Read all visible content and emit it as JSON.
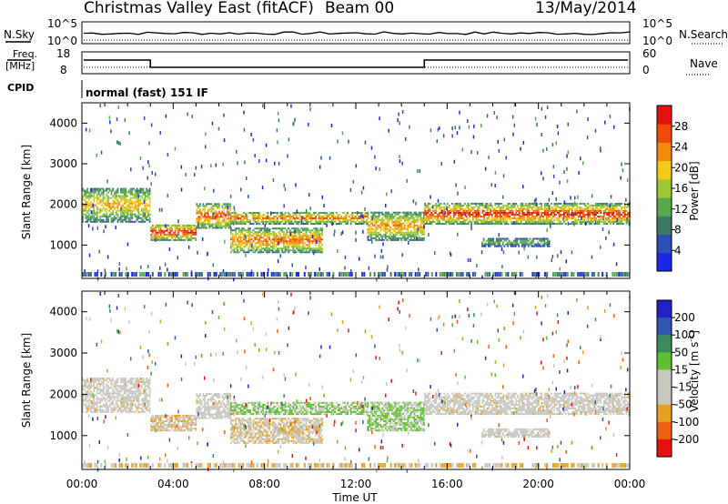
{
  "header": {
    "title": "Christmas Valley East (fitACF)",
    "beam": "Beam 00",
    "date": "13/May/2014"
  },
  "status": {
    "nsky_label": "N.Sky",
    "nsky_tick_hi": "10^5",
    "nsky_tick_lo": "10^0",
    "nsearch_label": "N.Search",
    "freq_label_1": "Freq.",
    "freq_label_2": "[MHz]",
    "freq_tick_hi": "18",
    "freq_tick_lo": "8",
    "nave_label": "Nave",
    "nave_tick_hi": "60",
    "nave_tick_lo": "0",
    "cpid_label": "CPID",
    "cpid_value": "normal (fast) 151 IF"
  },
  "colors": {
    "power": [
      "#1a28e6",
      "#2e4fb8",
      "#3d7a6a",
      "#58a84e",
      "#9cc834",
      "#f2c81a",
      "#f28a0c",
      "#f04a08",
      "#e61010"
    ],
    "velocity": [
      "#2222c8",
      "#2f58b0",
      "#3c8a5a",
      "#60c030",
      "#c8c8c0",
      "#c8c8c0",
      "#e8a020",
      "#f06010",
      "#e81010"
    ]
  },
  "chart_data": [
    {
      "type": "heatmap",
      "name": "power",
      "ylabel": "Slant Range [km]",
      "xlabel": "Time UT",
      "ylim": [
        180,
        4500
      ],
      "xlim_hours": [
        0,
        24
      ],
      "yticks": [
        1000,
        2000,
        3000,
        4000
      ],
      "xticks": [
        "00:00",
        "04:00",
        "08:00",
        "12:00",
        "16:00",
        "20:00",
        "00:00"
      ],
      "colorbar": {
        "label": "Power [dB]",
        "ticks": [
          "4",
          "8",
          "12",
          "16",
          "20",
          "24",
          "28"
        ],
        "range": [
          0,
          32
        ]
      },
      "features": [
        {
          "t0": 0,
          "t1": 3.0,
          "r0": 1550,
          "r1": 2400,
          "peak_db": 22
        },
        {
          "t0": 3.0,
          "t1": 5.0,
          "r0": 1100,
          "r1": 1500,
          "peak_db": 30
        },
        {
          "t0": 5.0,
          "t1": 6.5,
          "r0": 1400,
          "r1": 2000,
          "peak_db": 28
        },
        {
          "t0": 6.5,
          "t1": 12.5,
          "r0": 1500,
          "r1": 1800,
          "peak_db": 26
        },
        {
          "t0": 6.5,
          "t1": 10.5,
          "r0": 800,
          "r1": 1400,
          "peak_db": 26
        },
        {
          "t0": 12.5,
          "t1": 15.0,
          "r0": 1100,
          "r1": 1800,
          "peak_db": 24
        },
        {
          "t0": 15.0,
          "t1": 24,
          "r0": 1500,
          "r1": 2000,
          "peak_db": 30
        },
        {
          "t0": 17.5,
          "t1": 20.5,
          "r0": 950,
          "r1": 1150,
          "peak_db": 14
        }
      ]
    },
    {
      "type": "heatmap",
      "name": "velocity",
      "ylabel": "Slant Range [km]",
      "xlabel": "Time UT",
      "ylim": [
        180,
        4500
      ],
      "xlim_hours": [
        0,
        24
      ],
      "yticks": [
        1000,
        2000,
        3000,
        4000
      ],
      "xticks": [
        "00:00",
        "04:00",
        "08:00",
        "12:00",
        "16:00",
        "20:00",
        "00:00"
      ],
      "colorbar": {
        "label": "Velocity [m s^-1]",
        "ticks": [
          "200",
          "100",
          "50",
          "15",
          "-15",
          "-50",
          "-100",
          "-200"
        ],
        "range": [
          -250,
          250
        ]
      }
    }
  ]
}
